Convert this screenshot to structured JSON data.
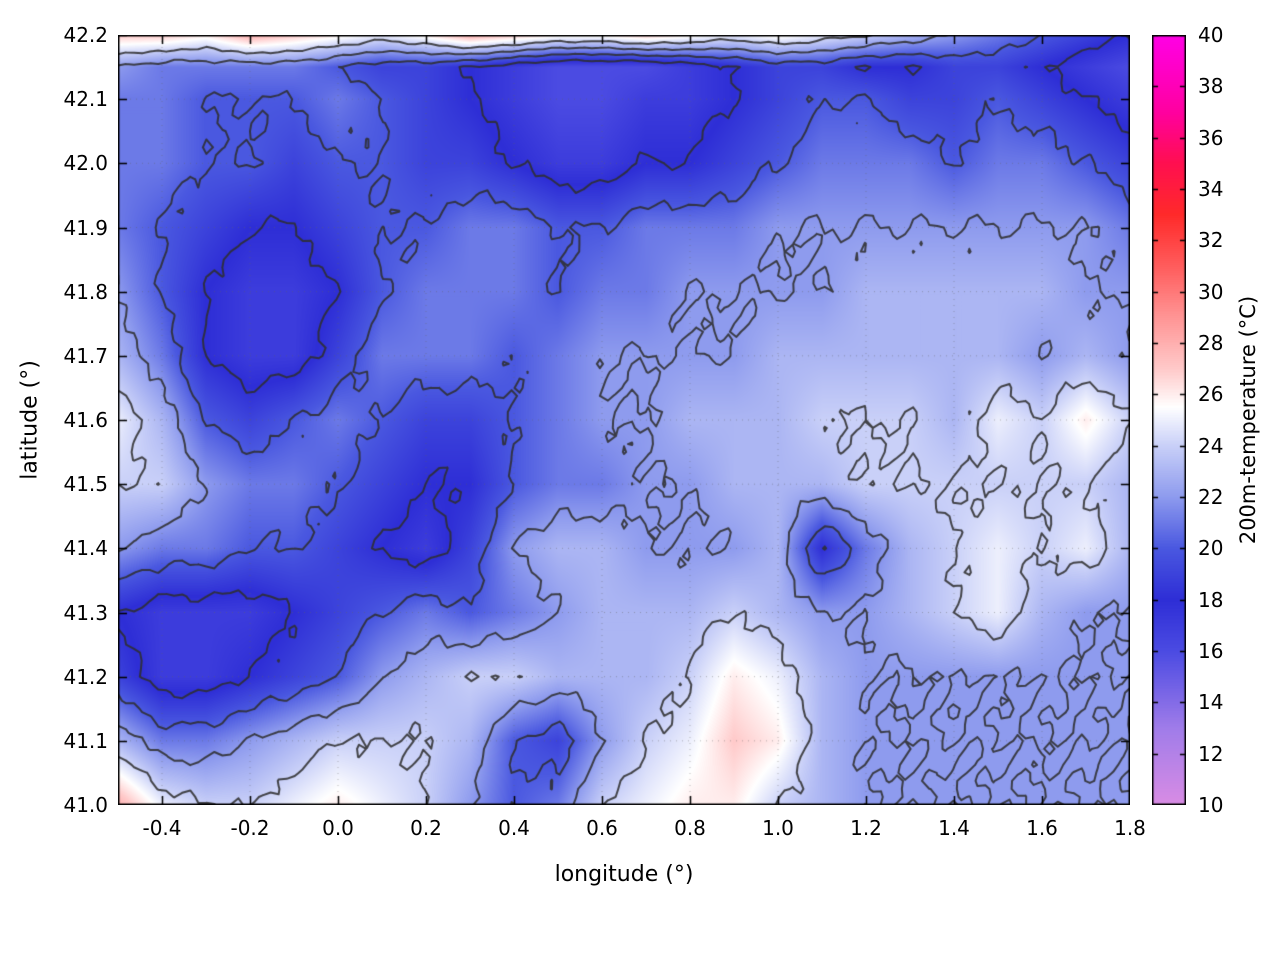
{
  "figure": {
    "background_color": "#ffffff",
    "frame_color": "#000000",
    "grid_color": "#888888"
  },
  "chart_data": {
    "type": "heatmap",
    "title": "",
    "xlabel": "longitude (°)",
    "ylabel": "latitude (°)",
    "colorbar_label": "200m-temperature (°C)",
    "units": "°C",
    "x_range": [
      -0.5,
      1.8
    ],
    "y_range": [
      41.0,
      42.2
    ],
    "x_ticks": [
      -0.4,
      -0.2,
      0.0,
      0.2,
      0.4,
      0.6,
      0.8,
      1.0,
      1.2,
      1.4,
      1.6,
      1.8
    ],
    "y_ticks": [
      41.0,
      41.1,
      41.2,
      41.3,
      41.4,
      41.5,
      41.6,
      41.7,
      41.8,
      41.9,
      42.0,
      42.1,
      42.2
    ],
    "colorbar_range": [
      10,
      40
    ],
    "colorbar_ticks": [
      10,
      12,
      14,
      16,
      18,
      20,
      22,
      24,
      26,
      28,
      30,
      32,
      34,
      36,
      38,
      40
    ],
    "grid": "dotted",
    "legend": "colorbar-right",
    "contour_levels": [
      18,
      20,
      22,
      24
    ],
    "contour_color": "#2f2f2f",
    "colormap": [
      {
        "t": 10.0,
        "color": "#d98ce4"
      },
      {
        "t": 13.0,
        "color": "#a07ce9"
      },
      {
        "t": 16.0,
        "color": "#4b4be2"
      },
      {
        "t": 18.0,
        "color": "#2e2ed6"
      },
      {
        "t": 20.0,
        "color": "#4a58e0"
      },
      {
        "t": 22.0,
        "color": "#8e9bee"
      },
      {
        "t": 24.0,
        "color": "#c9d0f8"
      },
      {
        "t": 25.5,
        "color": "#ffffff"
      },
      {
        "t": 27.0,
        "color": "#ffc9c9"
      },
      {
        "t": 29.0,
        "color": "#ff9595"
      },
      {
        "t": 31.0,
        "color": "#ff5c5c"
      },
      {
        "t": 33.0,
        "color": "#ff2a2a"
      },
      {
        "t": 35.0,
        "color": "#ff0f50"
      },
      {
        "t": 37.0,
        "color": "#ff00a0"
      },
      {
        "t": 40.0,
        "color": "#ff00e6"
      }
    ],
    "grid_lon": [
      -0.5,
      -0.4,
      -0.3,
      -0.2,
      -0.1,
      0.0,
      0.1,
      0.2,
      0.3,
      0.4,
      0.5,
      0.6,
      0.7,
      0.8,
      0.9,
      1.0,
      1.1,
      1.2,
      1.3,
      1.4,
      1.5,
      1.6,
      1.7,
      1.8
    ],
    "grid_lat": [
      42.2,
      42.15,
      42.1,
      42.0,
      41.9,
      41.8,
      41.7,
      41.6,
      41.5,
      41.4,
      41.3,
      41.2,
      41.1,
      41.0
    ],
    "values": [
      [
        27,
        27,
        26,
        28,
        27,
        26,
        25,
        26,
        28,
        27,
        26,
        26,
        27,
        26,
        25,
        26,
        25,
        24,
        23,
        22,
        21,
        20,
        19,
        18
      ],
      [
        22,
        21,
        21,
        21,
        21,
        20,
        19,
        19,
        18,
        17,
        16,
        16,
        16,
        17,
        18,
        19,
        19,
        18,
        18,
        19,
        19,
        18,
        17,
        16
      ],
      [
        21,
        21,
        20,
        20,
        20,
        21,
        20,
        19,
        18,
        17,
        16,
        16,
        17,
        17,
        18,
        19,
        20,
        20,
        19,
        19,
        20,
        19,
        18,
        17
      ],
      [
        21,
        21,
        20,
        20,
        19,
        20,
        20,
        19,
        19,
        18,
        17,
        17,
        18,
        18,
        19,
        20,
        21,
        21,
        21,
        20,
        21,
        21,
        20,
        19
      ],
      [
        21,
        20,
        19,
        18,
        18,
        19,
        20,
        20,
        21,
        21,
        20,
        20,
        21,
        21,
        21,
        22,
        22,
        22,
        22,
        22,
        22,
        22,
        22,
        21
      ],
      [
        22,
        20,
        18,
        17,
        17,
        18,
        20,
        21,
        21,
        21,
        20,
        21,
        21,
        22,
        22,
        22,
        22,
        23,
        23,
        23,
        23,
        23,
        22,
        22
      ],
      [
        23,
        21,
        18,
        17,
        17,
        19,
        21,
        21,
        21,
        20,
        21,
        22,
        22,
        22,
        22,
        23,
        23,
        23,
        23,
        23,
        23,
        22,
        23,
        22
      ],
      [
        25,
        23,
        20,
        19,
        20,
        21,
        20,
        19,
        19,
        20,
        21,
        22,
        22,
        23,
        23,
        23,
        24,
        24,
        24,
        23,
        25,
        24,
        26,
        24
      ],
      [
        24,
        24,
        22,
        21,
        21,
        20,
        19,
        18,
        18,
        20,
        21,
        21,
        22,
        22,
        23,
        23,
        23,
        24,
        24,
        24,
        24,
        24,
        24,
        23
      ],
      [
        22,
        21,
        21,
        20,
        20,
        19,
        18,
        17,
        19,
        22,
        23,
        23,
        22,
        22,
        22,
        23,
        18,
        21,
        23,
        24,
        25,
        24,
        25,
        23
      ],
      [
        18,
        17,
        17,
        17,
        18,
        19,
        20,
        21,
        20,
        21,
        22,
        23,
        23,
        23,
        24,
        23,
        22,
        22,
        23,
        24,
        25,
        23,
        22,
        22
      ],
      [
        19,
        17,
        17,
        18,
        19,
        20,
        22,
        23,
        24,
        24,
        23,
        23,
        23,
        24,
        26,
        25,
        23,
        22,
        22,
        22,
        22,
        22,
        22,
        22
      ],
      [
        23,
        21,
        21,
        22,
        23,
        24,
        24,
        24,
        23,
        20,
        19,
        22,
        24,
        25,
        27,
        26,
        23,
        22,
        22,
        22,
        22,
        22,
        22,
        22
      ],
      [
        28,
        25,
        24,
        24,
        25,
        26,
        25,
        24,
        22,
        20,
        21,
        24,
        25,
        26,
        26,
        24,
        23,
        22,
        22,
        22,
        22,
        22,
        22,
        22
      ]
    ]
  }
}
